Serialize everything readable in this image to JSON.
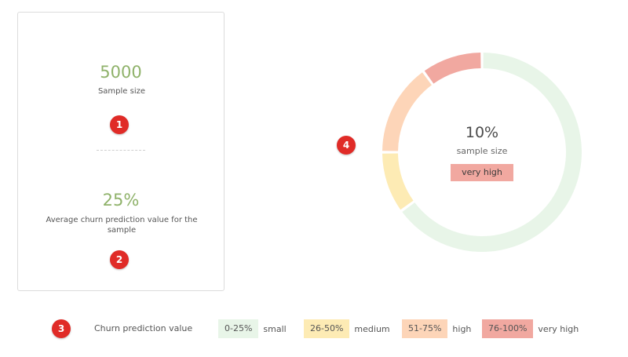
{
  "stats": {
    "sample_size_value": "5000",
    "sample_size_label": "Sample size",
    "avg_churn_value": "25%",
    "avg_churn_label": "Average churn prediction value for the sample"
  },
  "markers": [
    "1",
    "2",
    "3",
    "4"
  ],
  "donut": {
    "center_value": "10%",
    "center_label": "sample size",
    "badge_label": "very high",
    "badge_color": "#f1a8a0"
  },
  "legend": {
    "title": "Churn prediction value",
    "items": [
      {
        "range": "0-25%",
        "label": "small",
        "color": "#e8f5e8"
      },
      {
        "range": "26-50%",
        "label": "medium",
        "color": "#fdebb4"
      },
      {
        "range": "51-75%",
        "label": "high",
        "color": "#fdd5b8"
      },
      {
        "range": "76-100%",
        "label": "very high",
        "color": "#f1a8a0"
      }
    ]
  },
  "chart_data": {
    "type": "pie",
    "categories": [
      "0-25%",
      "26-50%",
      "51-75%",
      "76-100%"
    ],
    "values": [
      65,
      10,
      15,
      10
    ],
    "colors": [
      "#e8f5e8",
      "#fdebb4",
      "#fdd5b8",
      "#f1a8a0"
    ],
    "donut": true
  }
}
